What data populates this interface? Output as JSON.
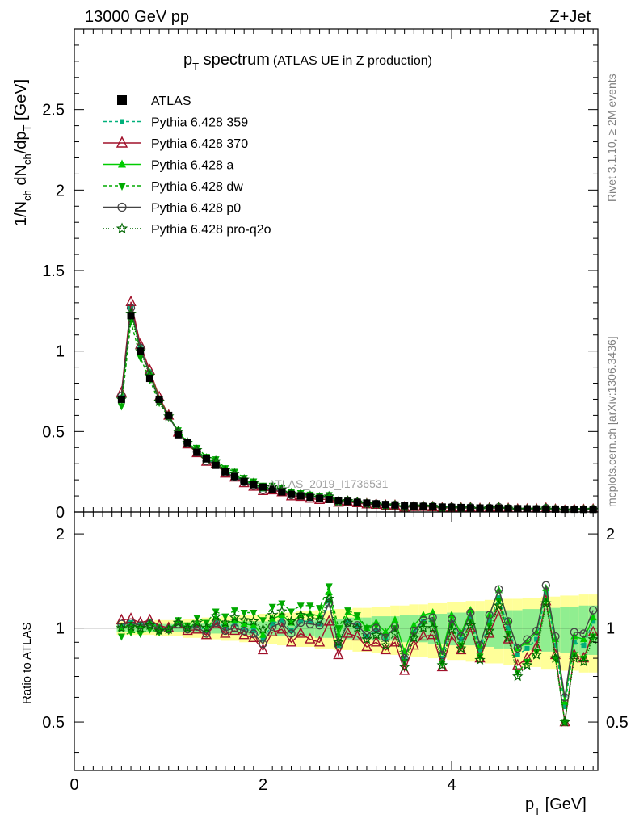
{
  "header": {
    "left": "13000 GeV pp",
    "right": "Z+Jet"
  },
  "title": {
    "main": "p",
    "main_sub": "T",
    "main_rest": " spectrum",
    "note": "(ATLAS UE in Z production)"
  },
  "watermark": "ATLAS_2019_I1736531",
  "side_text": {
    "top": "Rivet 3.1.10, ≥ 2M events",
    "bottom": "mcplots.cern.ch [arXiv:1306.3436]"
  },
  "axes": {
    "ylabel_top": "1/N_ch dN_ch/dp_T [GeV]",
    "ylabel_bottom": "Ratio to ATLAS",
    "xlabel": "p_T [GeV]",
    "top_ticks": [
      "0",
      "0.5",
      "1",
      "1.5",
      "2",
      "2.5"
    ],
    "ratio_ticks": [
      "0.5",
      "1",
      "2"
    ],
    "x_ticks": [
      "0",
      "2",
      "4"
    ]
  },
  "legend": [
    {
      "label": "ATLAS",
      "color": "#000000",
      "marker": "square",
      "dash": "none"
    },
    {
      "label": "Pythia 6.428 359",
      "color": "#00b07a",
      "marker": "smallsquare",
      "dash": "4,3"
    },
    {
      "label": "Pythia 6.428 370",
      "color": "#a0102a",
      "marker": "triangle-open",
      "dash": "none"
    },
    {
      "label": "Pythia 6.428 a",
      "color": "#00cc00",
      "marker": "triangle",
      "dash": "none"
    },
    {
      "label": "Pythia 6.428 dw",
      "color": "#00aa00",
      "marker": "triangle-down",
      "dash": "4,3"
    },
    {
      "label": "Pythia 6.428 p0",
      "color": "#444444",
      "marker": "circle-open",
      "dash": "none"
    },
    {
      "label": "Pythia 6.428 pro-q2o",
      "color": "#006600",
      "marker": "star",
      "dash": "1,2"
    }
  ],
  "chart_data": {
    "type": "line",
    "x": [
      0.5,
      0.6,
      0.7,
      0.8,
      0.9,
      1.0,
      1.1,
      1.2,
      1.3,
      1.4,
      1.5,
      1.6,
      1.7,
      1.8,
      1.9,
      2.0,
      2.1,
      2.2,
      2.3,
      2.4,
      2.5,
      2.6,
      2.7,
      2.8,
      2.9,
      3.0,
      3.1,
      3.2,
      3.3,
      3.4,
      3.5,
      3.6,
      3.7,
      3.8,
      3.9,
      4.0,
      4.1,
      4.2,
      4.3,
      4.4,
      4.5,
      4.6,
      4.7,
      4.8,
      4.9,
      5.0,
      5.1,
      5.2,
      5.3,
      5.4,
      5.5
    ],
    "atlas": [
      0.7,
      1.22,
      1.0,
      0.83,
      0.7,
      0.6,
      0.48,
      0.43,
      0.37,
      0.33,
      0.29,
      0.25,
      0.22,
      0.19,
      0.17,
      0.155,
      0.14,
      0.125,
      0.11,
      0.1,
      0.092,
      0.085,
      0.078,
      0.072,
      0.066,
      0.06,
      0.056,
      0.051,
      0.047,
      0.044,
      0.04,
      0.037,
      0.035,
      0.033,
      0.031,
      0.029,
      0.028,
      0.026,
      0.025,
      0.024,
      0.023,
      0.022,
      0.021,
      0.02,
      0.019,
      0.018,
      0.018,
      0.017,
      0.017,
      0.016,
      0.016
    ],
    "series": [
      {
        "name": "Pythia 6.428 359",
        "ratio": [
          1.02,
          1.04,
          1.03,
          1.05,
          1.01,
          1.0,
          1.04,
          1.0,
          1.02,
          0.98,
          1.06,
          1.0,
          1.03,
          0.99,
          0.98,
          0.92,
          1.03,
          1.06,
          0.98,
          1.05,
          1.05,
          1.03,
          1.22,
          0.88,
          1.05,
          1.02,
          0.94,
          0.98,
          0.92,
          1.0,
          0.8,
          0.97,
          1.05,
          1.05,
          0.8,
          1.04,
          0.92,
          1.08,
          0.85,
          1.05,
          1.25,
          1.0,
          0.82,
          0.86,
          0.92,
          1.3,
          0.88,
          0.56,
          0.9,
          0.88,
          1.05
        ]
      },
      {
        "name": "Pythia 6.428 370",
        "ratio": [
          1.06,
          1.07,
          1.04,
          1.06,
          1.02,
          1.0,
          1.03,
          0.98,
          0.99,
          0.95,
          1.03,
          0.96,
          0.98,
          0.95,
          0.93,
          0.85,
          0.97,
          0.99,
          0.9,
          0.96,
          0.92,
          0.9,
          1.05,
          0.82,
          0.96,
          0.94,
          0.87,
          0.9,
          0.85,
          0.9,
          0.73,
          0.88,
          0.94,
          0.95,
          0.75,
          0.94,
          0.85,
          1.0,
          0.8,
          0.96,
          1.13,
          0.92,
          0.76,
          0.8,
          0.87,
          1.22,
          0.82,
          0.5,
          0.82,
          0.8,
          0.97
        ]
      },
      {
        "name": "Pythia 6.428 a",
        "ratio": [
          1.0,
          1.02,
          1.01,
          1.04,
          1.0,
          0.99,
          1.05,
          1.0,
          1.04,
          0.99,
          1.08,
          1.03,
          1.06,
          1.03,
          1.02,
          0.95,
          1.07,
          1.1,
          1.04,
          1.1,
          1.11,
          1.09,
          1.3,
          0.95,
          1.12,
          1.08,
          1.0,
          1.04,
          0.97,
          1.06,
          0.84,
          1.02,
          1.1,
          1.12,
          0.84,
          1.1,
          0.96,
          1.14,
          0.88,
          1.1,
          1.32,
          1.05,
          0.86,
          0.9,
          0.97,
          1.34,
          0.92,
          0.58,
          0.94,
          0.92,
          1.08
        ]
      },
      {
        "name": "Pythia 6.428 dw",
        "ratio": [
          0.94,
          0.97,
          0.96,
          0.99,
          0.97,
          0.98,
          1.06,
          1.02,
          1.08,
          1.04,
          1.13,
          1.09,
          1.14,
          1.12,
          1.12,
          1.06,
          1.17,
          1.2,
          1.13,
          1.18,
          1.18,
          1.16,
          1.36,
          1.0,
          1.14,
          1.1,
          1.0,
          1.02,
          0.94,
          1.0,
          0.78,
          0.95,
          1.03,
          1.04,
          0.77,
          1.02,
          0.88,
          1.05,
          0.81,
          1.02,
          1.22,
          0.96,
          0.72,
          0.78,
          0.84,
          1.22,
          0.8,
          0.5,
          0.82,
          0.8,
          0.94
        ]
      },
      {
        "name": "Pythia 6.428 p0",
        "ratio": [
          1.03,
          1.04,
          1.02,
          1.03,
          0.99,
          0.99,
          1.03,
          0.99,
          1.01,
          0.96,
          1.04,
          0.98,
          1.0,
          0.98,
          0.96,
          0.89,
          1.01,
          1.04,
          0.96,
          1.04,
          1.03,
          1.02,
          1.2,
          0.88,
          1.04,
          1.02,
          0.95,
          1.0,
          0.93,
          1.01,
          0.8,
          0.98,
          1.06,
          1.08,
          0.82,
          1.07,
          0.94,
          1.12,
          0.88,
          1.1,
          1.33,
          1.05,
          0.86,
          0.92,
          0.98,
          1.37,
          0.94,
          0.6,
          0.97,
          0.96,
          1.14
        ]
      },
      {
        "name": "Pythia 6.428 pro-q2o",
        "ratio": [
          1.0,
          1.01,
          1.0,
          1.02,
          0.98,
          0.99,
          1.04,
          1.0,
          1.04,
          1.0,
          1.09,
          1.04,
          1.08,
          1.06,
          1.05,
          0.99,
          1.1,
          1.13,
          1.05,
          1.1,
          1.09,
          1.06,
          1.24,
          0.9,
          1.04,
          1.0,
          0.92,
          0.95,
          0.88,
          0.96,
          0.75,
          0.93,
          1.0,
          1.0,
          0.76,
          0.99,
          0.86,
          1.02,
          0.79,
          0.98,
          1.18,
          0.93,
          0.7,
          0.76,
          0.82,
          1.2,
          0.8,
          0.5,
          0.8,
          0.78,
          0.92
        ]
      }
    ],
    "band_inner": [
      0.03,
      0.03,
      0.03,
      0.03,
      0.03,
      0.03,
      0.03,
      0.03,
      0.04,
      0.04,
      0.04,
      0.04,
      0.04,
      0.05,
      0.05,
      0.05,
      0.05,
      0.06,
      0.06,
      0.06,
      0.06,
      0.07,
      0.07,
      0.07,
      0.08,
      0.08,
      0.08,
      0.09,
      0.09,
      0.09,
      0.1,
      0.1,
      0.1,
      0.11,
      0.11,
      0.12,
      0.12,
      0.12,
      0.13,
      0.13,
      0.14,
      0.14,
      0.14,
      0.15,
      0.15,
      0.16,
      0.16,
      0.17,
      0.17,
      0.18,
      0.18
    ],
    "band_outer": [
      0.05,
      0.05,
      0.05,
      0.05,
      0.06,
      0.06,
      0.06,
      0.07,
      0.07,
      0.08,
      0.08,
      0.09,
      0.09,
      0.1,
      0.1,
      0.11,
      0.11,
      0.12,
      0.12,
      0.13,
      0.13,
      0.14,
      0.14,
      0.15,
      0.15,
      0.16,
      0.16,
      0.17,
      0.17,
      0.18,
      0.18,
      0.19,
      0.19,
      0.2,
      0.2,
      0.21,
      0.21,
      0.22,
      0.22,
      0.23,
      0.23,
      0.24,
      0.24,
      0.25,
      0.25,
      0.26,
      0.26,
      0.27,
      0.27,
      0.28,
      0.28
    ],
    "xlim": [
      0,
      5.55
    ],
    "ylim_top": [
      0,
      3.0
    ],
    "ylim_ratio": [
      0.35,
      2.35
    ],
    "ratio_log": true
  }
}
